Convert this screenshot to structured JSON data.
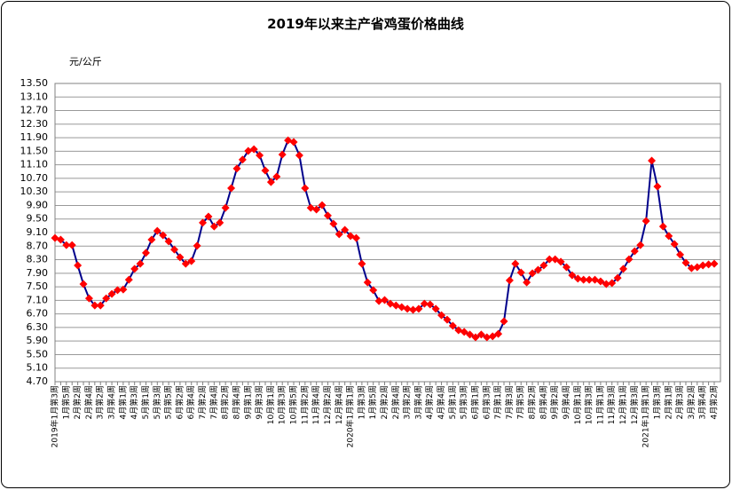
{
  "chart_data": {
    "type": "line",
    "title": "2019年以来主产省鸡蛋价格曲线",
    "y_label": "元/公斤",
    "categories": [
      "2019年1月第3周",
      null,
      "1月第5周",
      null,
      "2月第2周",
      null,
      "2月第4周",
      null,
      "3月第2周",
      null,
      "3月第4周",
      null,
      "4月第1周",
      null,
      "4月第3周",
      null,
      "5月第1周",
      null,
      "5月第3周",
      null,
      "5月第5周",
      null,
      "6月第2周",
      null,
      "6月第4周",
      null,
      "7月第2周",
      null,
      "7月第4周",
      null,
      "8月第2周",
      null,
      "8月第4周",
      null,
      "9月第1周",
      null,
      "9月第3周",
      null,
      "10月第1周",
      null,
      "10月第3周",
      null,
      "10月第5周",
      null,
      "11月第2周",
      null,
      "11月第4周",
      null,
      "12月第2周",
      null,
      "12月第4周",
      null,
      "2020年1月第1周",
      null,
      "1月第3周",
      null,
      "1月第5周",
      null,
      "2月第2周",
      null,
      "2月第4周",
      null,
      "3月第2周",
      null,
      "3月第4周",
      null,
      "4月第2周",
      null,
      "4月第4周",
      null,
      "5月第1周",
      null,
      "5月第3周",
      null,
      "6月第1周",
      null,
      "6月第3周",
      null,
      "7月第1周",
      null,
      "7月第3周",
      null,
      "7月第5周",
      null,
      "8月第2周",
      null,
      "8月第4周",
      null,
      "9月第2周",
      null,
      "9月第4周",
      null,
      "10月第1周",
      null,
      "10月第3周",
      null,
      "11月第1周",
      null,
      "11月第3周",
      null,
      "12月第1周",
      null,
      "12月第3周",
      null,
      "2021年1月第1周",
      null,
      "1月第3周",
      null,
      "2月第1周",
      null,
      "2月第3周",
      null,
      "3月第2周",
      null,
      "3月第4周",
      null,
      "4月第2周"
    ],
    "series": [
      {
        "color": "#00008b",
        "marker_color": "#ff0000",
        "values": [
          8.94,
          8.89,
          8.73,
          8.73,
          8.13,
          7.58,
          7.16,
          6.95,
          6.95,
          7.16,
          7.29,
          7.4,
          7.42,
          7.71,
          8.03,
          8.18,
          8.5,
          8.89,
          9.15,
          9.02,
          8.84,
          8.6,
          8.37,
          8.18,
          8.26,
          8.71,
          9.39,
          9.57,
          9.28,
          9.39,
          9.83,
          10.41,
          10.99,
          11.25,
          11.51,
          11.56,
          11.38,
          10.93,
          10.59,
          10.75,
          11.4,
          11.82,
          11.77,
          11.38,
          10.41,
          9.83,
          9.78,
          9.91,
          9.6,
          9.36,
          9.05,
          9.18,
          9.0,
          8.94,
          8.18,
          7.63,
          7.4,
          7.08,
          7.11,
          7.0,
          6.95,
          6.9,
          6.85,
          6.82,
          6.85,
          7.0,
          6.98,
          6.85,
          6.66,
          6.53,
          6.35,
          6.22,
          6.17,
          6.09,
          6.01,
          6.09,
          6.01,
          6.04,
          6.11,
          6.48,
          7.69,
          8.18,
          7.92,
          7.63,
          7.9,
          8.0,
          8.13,
          8.31,
          8.31,
          8.24,
          8.08,
          7.84,
          7.74,
          7.71,
          7.71,
          7.71,
          7.66,
          7.58,
          7.61,
          7.76,
          8.03,
          8.31,
          8.55,
          8.73,
          9.44,
          11.22,
          10.46,
          9.28,
          9.0,
          8.76,
          8.45,
          8.21,
          8.05,
          8.08,
          8.13,
          8.16,
          8.18
        ]
      }
    ],
    "ylim": [
      4.7,
      13.5
    ],
    "yticks": [
      {
        "value": 4.7,
        "label": "4.70"
      },
      {
        "value": 5.1,
        "label": "5.10"
      },
      {
        "value": 5.5,
        "label": "5.50"
      },
      {
        "value": 5.9,
        "label": "5.90"
      },
      {
        "value": 6.3,
        "label": "6.30"
      },
      {
        "value": 6.7,
        "label": "6.70"
      },
      {
        "value": 7.1,
        "label": "7.10"
      },
      {
        "value": 7.5,
        "label": "7.50"
      },
      {
        "value": 7.9,
        "label": "7.90"
      },
      {
        "value": 8.3,
        "label": "8.30"
      },
      {
        "value": 8.7,
        "label": "8.70"
      },
      {
        "value": 9.1,
        "label": "9.10"
      },
      {
        "value": 9.5,
        "label": "9.50"
      },
      {
        "value": 9.9,
        "label": "9.90"
      },
      {
        "value": 10.3,
        "label": "10.30"
      },
      {
        "value": 10.7,
        "label": "10.70"
      },
      {
        "value": 11.1,
        "label": "11.10"
      },
      {
        "value": 11.5,
        "label": "11.50"
      },
      {
        "value": 11.9,
        "label": "11.90"
      },
      {
        "value": 12.3,
        "label": "12.30"
      },
      {
        "value": 12.7,
        "label": "12.70"
      },
      {
        "value": 13.1,
        "label": "13.10"
      },
      {
        "value": 13.5,
        "label": "13.50"
      }
    ],
    "grid": true
  }
}
